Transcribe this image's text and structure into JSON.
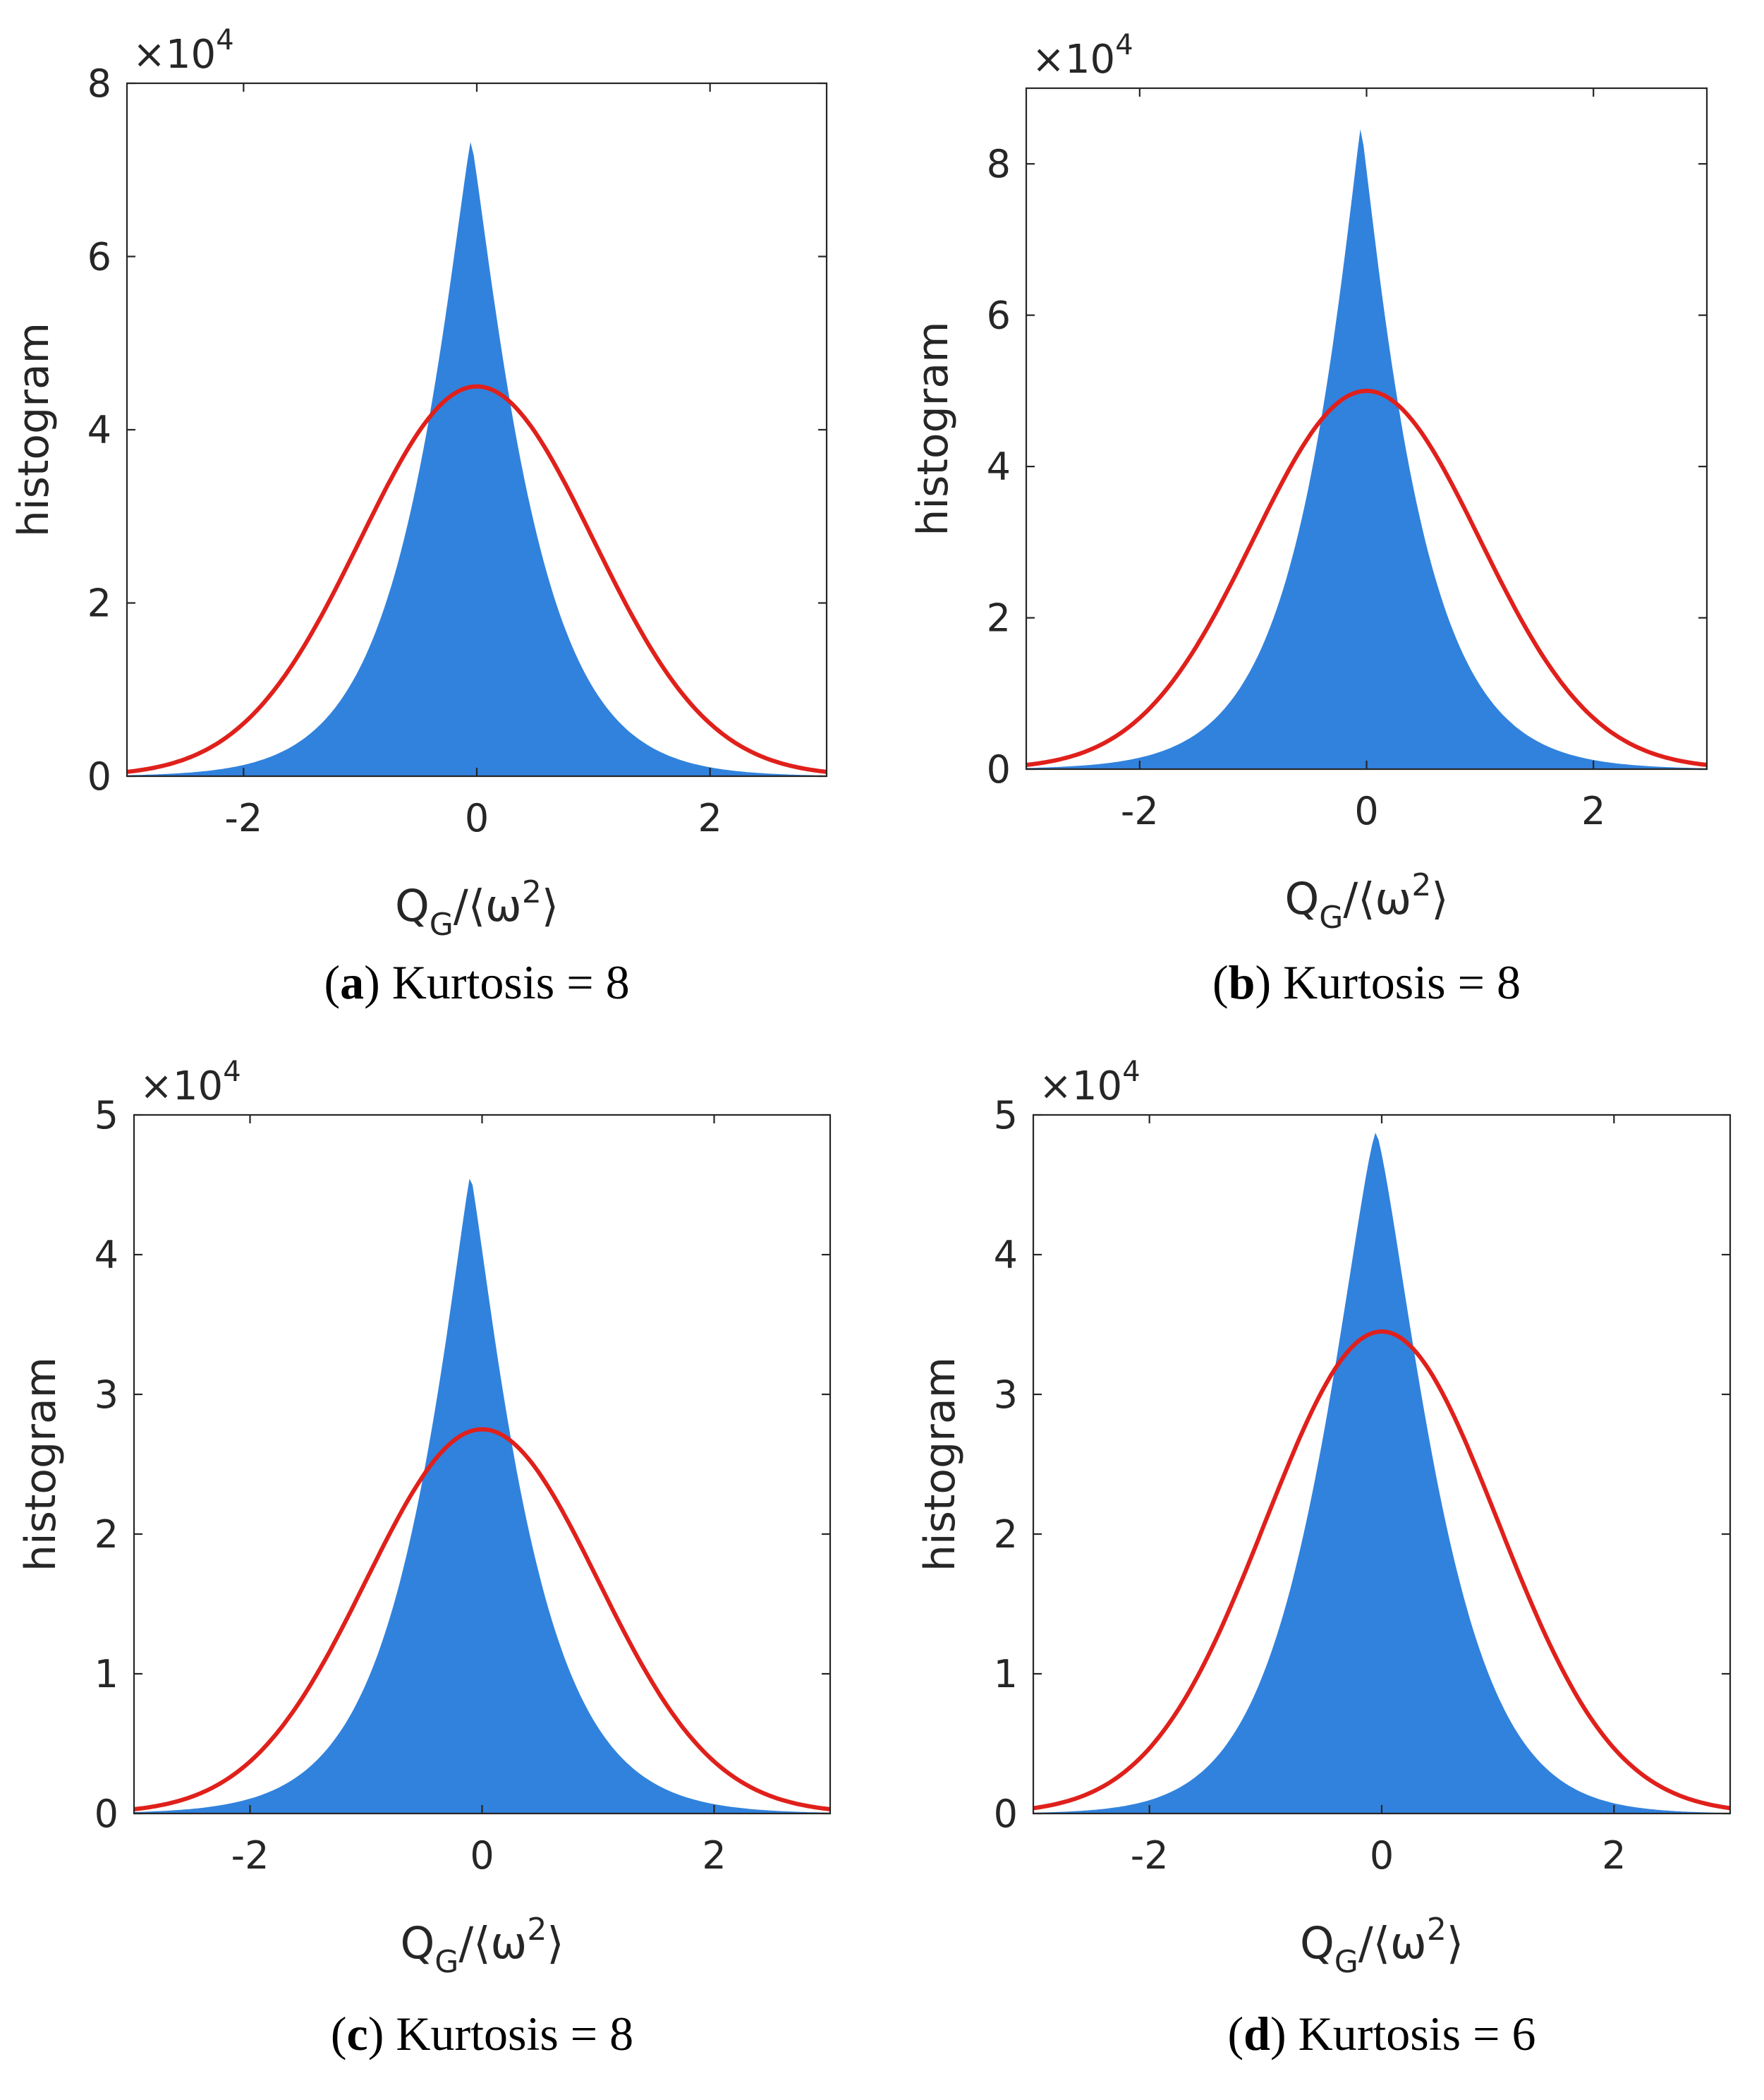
{
  "chart_data": [
    {
      "type": "bar",
      "panel_label": "a",
      "caption": "Kurtosis = 8",
      "xlabel_base": "Q",
      "xlabel_sub": "G",
      "xlabel_rest": "/⟨ω",
      "xlabel_sup": "2",
      "xlabel_close": "⟩",
      "ylabel": "histogram",
      "y_multiplier_text": "×10",
      "y_multiplier_exp": "4",
      "xlim": [
        -3,
        3
      ],
      "ylim": [
        0,
        80000
      ],
      "xticks": [
        -2,
        0,
        2
      ],
      "xtick_labels": [
        "-2",
        "0",
        "2"
      ],
      "yticks": [
        0,
        20000,
        40000,
        60000,
        80000
      ],
      "ytick_labels": [
        "0",
        "2",
        "4",
        "6",
        "8"
      ],
      "histogram": {
        "center": -0.05,
        "peak": 73500,
        "decay_scale": 0.58,
        "shape_exponent": 1.15,
        "color": "#3182dd"
      },
      "gaussian_fit": {
        "mean": 0.0,
        "sigma": 1.0,
        "peak": 45000,
        "color": "#e0201b"
      }
    },
    {
      "type": "bar",
      "panel_label": "b",
      "caption": "Kurtosis = 8",
      "xlabel_base": "Q",
      "xlabel_sub": "G",
      "xlabel_rest": "/⟨ω",
      "xlabel_sup": "2",
      "xlabel_close": "⟩",
      "ylabel": "histogram",
      "y_multiplier_text": "×10",
      "y_multiplier_exp": "4",
      "xlim": [
        -3,
        3
      ],
      "ylim": [
        0,
        90000
      ],
      "xticks": [
        -2,
        0,
        2
      ],
      "xtick_labels": [
        "-2",
        "0",
        "2"
      ],
      "yticks": [
        0,
        20000,
        40000,
        60000,
        80000
      ],
      "ytick_labels": [
        "0",
        "2",
        "4",
        "6",
        "8"
      ],
      "histogram": {
        "center": -0.05,
        "peak": 85000,
        "decay_scale": 0.55,
        "shape_exponent": 1.1,
        "color": "#3182dd"
      },
      "gaussian_fit": {
        "mean": 0.0,
        "sigma": 1.0,
        "peak": 50000,
        "color": "#e0201b"
      }
    },
    {
      "type": "bar",
      "panel_label": "c",
      "caption": "Kurtosis = 8",
      "xlabel_base": "Q",
      "xlabel_sub": "G",
      "xlabel_rest": "/⟨ω",
      "xlabel_sup": "2",
      "xlabel_close": "⟩",
      "ylabel": "histogram",
      "y_multiplier_text": "×10",
      "y_multiplier_exp": "4",
      "xlim": [
        -3,
        3
      ],
      "ylim": [
        0,
        50000
      ],
      "xticks": [
        -2,
        0,
        2
      ],
      "xtick_labels": [
        "-2",
        "0",
        "2"
      ],
      "yticks": [
        0,
        10000,
        20000,
        30000,
        40000,
        50000
      ],
      "ytick_labels": [
        "0",
        "1",
        "2",
        "3",
        "4",
        "5"
      ],
      "histogram": {
        "center": -0.1,
        "peak": 45800,
        "decay_scale": 0.6,
        "shape_exponent": 1.15,
        "color": "#3182dd"
      },
      "gaussian_fit": {
        "mean": 0.0,
        "sigma": 1.0,
        "peak": 27500,
        "color": "#e0201b"
      }
    },
    {
      "type": "bar",
      "panel_label": "d",
      "caption": "Kurtosis = 6",
      "xlabel_base": "Q",
      "xlabel_sub": "G",
      "xlabel_rest": "/⟨ω",
      "xlabel_sup": "2",
      "xlabel_close": "⟩",
      "ylabel": "histogram",
      "y_multiplier_text": "×10",
      "y_multiplier_exp": "4",
      "xlim": [
        -3,
        3
      ],
      "ylim": [
        0,
        50000
      ],
      "xticks": [
        -2,
        0,
        2
      ],
      "xtick_labels": [
        "-2",
        "0",
        "2"
      ],
      "yticks": [
        0,
        10000,
        20000,
        30000,
        40000,
        50000
      ],
      "ytick_labels": [
        "0",
        "1",
        "2",
        "3",
        "4",
        "5"
      ],
      "histogram": {
        "center": -0.05,
        "peak": 48800,
        "decay_scale": 0.68,
        "shape_exponent": 1.3,
        "color": "#3182dd"
      },
      "gaussian_fit": {
        "mean": 0.0,
        "sigma": 1.0,
        "peak": 34500,
        "color": "#e0201b"
      }
    }
  ]
}
